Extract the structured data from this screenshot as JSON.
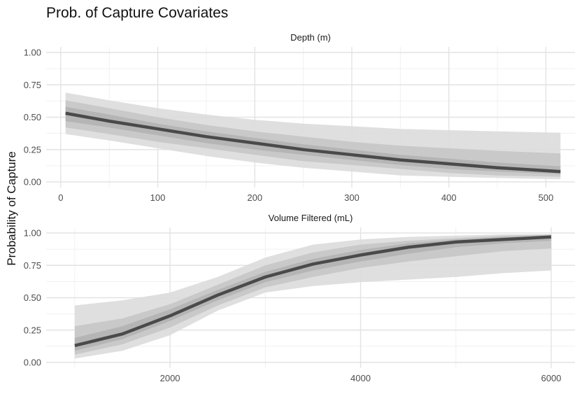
{
  "chart_data": {
    "title": "Prob. of Capture Covariates",
    "ylabel": "Probability of Capture",
    "type": "line",
    "legend": "none",
    "grid": true,
    "panels": [
      {
        "strip": "Depth (m)",
        "xlim": [
          -15,
          530
        ],
        "ylim": [
          0,
          1
        ],
        "x_ticks": [
          0,
          100,
          200,
          300,
          400,
          500
        ],
        "y_ticks": [
          "0.00",
          "0.25",
          "0.50",
          "0.75",
          "1.00"
        ],
        "series": [
          {
            "x": [
              5,
              50,
              100,
              150,
              200,
              250,
              300,
              350,
              400,
              450,
              515
            ],
            "median": [
              0.53,
              0.47,
              0.41,
              0.35,
              0.3,
              0.25,
              0.21,
              0.17,
              0.14,
              0.11,
              0.08
            ],
            "bands": [
              {
                "level": "outer",
                "low": [
                  0.37,
                  0.32,
                  0.26,
                  0.2,
                  0.15,
                  0.11,
                  0.08,
                  0.05,
                  0.04,
                  0.03,
                  0.02
                ],
                "high": [
                  0.69,
                  0.63,
                  0.57,
                  0.52,
                  0.48,
                  0.45,
                  0.43,
                  0.41,
                  0.4,
                  0.39,
                  0.38
                ]
              },
              {
                "level": "middle",
                "low": [
                  0.42,
                  0.37,
                  0.31,
                  0.26,
                  0.21,
                  0.16,
                  0.13,
                  0.1,
                  0.07,
                  0.05,
                  0.04
                ],
                "high": [
                  0.63,
                  0.57,
                  0.5,
                  0.44,
                  0.39,
                  0.35,
                  0.31,
                  0.28,
                  0.26,
                  0.24,
                  0.22
                ]
              },
              {
                "level": "inner",
                "low": [
                  0.47,
                  0.42,
                  0.36,
                  0.3,
                  0.25,
                  0.21,
                  0.17,
                  0.13,
                  0.1,
                  0.08,
                  0.06
                ],
                "high": [
                  0.58,
                  0.52,
                  0.45,
                  0.39,
                  0.34,
                  0.29,
                  0.25,
                  0.21,
                  0.18,
                  0.15,
                  0.12
                ]
              }
            ]
          }
        ]
      },
      {
        "strip": "Volume Filtered (mL)",
        "xlim": [
          700,
          6250
        ],
        "ylim": [
          0,
          1
        ],
        "x_ticks": [
          2000,
          4000,
          6000
        ],
        "y_ticks": [
          "0.00",
          "0.25",
          "0.50",
          "0.75",
          "1.00"
        ],
        "series": [
          {
            "x": [
              1000,
              1500,
              2000,
              2500,
              3000,
              3500,
              4000,
              4500,
              5000,
              5500,
              6000
            ],
            "median": [
              0.13,
              0.22,
              0.36,
              0.52,
              0.66,
              0.76,
              0.83,
              0.89,
              0.93,
              0.95,
              0.97
            ],
            "bands": [
              {
                "level": "outer",
                "low": [
                  0.03,
                  0.09,
                  0.21,
                  0.4,
                  0.54,
                  0.59,
                  0.62,
                  0.64,
                  0.66,
                  0.69,
                  0.71
                ],
                "high": [
                  0.44,
                  0.48,
                  0.54,
                  0.66,
                  0.81,
                  0.91,
                  0.95,
                  0.97,
                  0.98,
                  0.99,
                  0.99
                ]
              },
              {
                "level": "middle",
                "low": [
                  0.06,
                  0.14,
                  0.27,
                  0.44,
                  0.58,
                  0.66,
                  0.73,
                  0.78,
                  0.82,
                  0.86,
                  0.88
                ],
                "high": [
                  0.28,
                  0.34,
                  0.45,
                  0.6,
                  0.75,
                  0.85,
                  0.91,
                  0.94,
                  0.96,
                  0.98,
                  0.99
                ]
              },
              {
                "level": "inner",
                "low": [
                  0.09,
                  0.18,
                  0.32,
                  0.48,
                  0.62,
                  0.71,
                  0.78,
                  0.84,
                  0.89,
                  0.92,
                  0.94
                ],
                "high": [
                  0.19,
                  0.28,
                  0.41,
                  0.56,
                  0.7,
                  0.8,
                  0.87,
                  0.92,
                  0.95,
                  0.97,
                  0.98
                ]
              }
            ]
          }
        ]
      }
    ]
  }
}
